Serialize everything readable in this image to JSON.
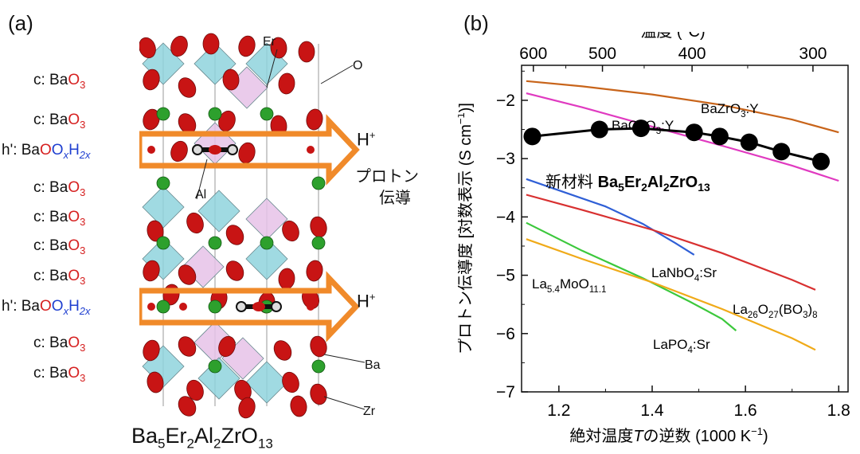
{
  "panel_a": {
    "label": "(a)",
    "layers": [
      {
        "prefix": "c: Ba",
        "o": "O",
        "sub": "3"
      },
      {
        "prefix": "c: Ba",
        "o": "O",
        "sub": "3"
      },
      {
        "prefix": "h': Ba",
        "special": true
      },
      {
        "prefix": "c: Ba",
        "o": "O",
        "sub": "3"
      },
      {
        "prefix": "c: Ba",
        "o": "O",
        "sub": "3"
      },
      {
        "prefix": "c: Ba",
        "o": "O",
        "sub": "3"
      },
      {
        "prefix": "c: Ba",
        "o": "O",
        "sub": "3"
      },
      {
        "prefix": "h': Ba",
        "special": true
      },
      {
        "prefix": "c: Ba",
        "o": "O",
        "sub": "3"
      },
      {
        "prefix": "c: Ba",
        "o": "O",
        "sub": "3"
      }
    ],
    "special_layer": {
      "o1": "O",
      "o2": "O",
      "x": "x",
      "h": "H",
      "h_sub": "2x"
    },
    "atom_labels": {
      "er": "Er",
      "o": "O",
      "al": "Al",
      "ba": "Ba",
      "zr": "Zr"
    },
    "hplus_main": "H",
    "hplus_sup": "+",
    "jp_line1": "プロトン",
    "jp_line2": "伝導",
    "formula": {
      "ba": "Ba",
      "ba_n": "5",
      "er": "Er",
      "er_n": "2",
      "al": "Al",
      "al_n": "2",
      "zr": "ZrO",
      "o_n": "13"
    }
  },
  "colors": {
    "oxygen": "#c81414",
    "barium": "#2da02d",
    "zr_poly": "#8fd3dd",
    "er_poly": "#e6c2e8",
    "arrow": "#f08a2a",
    "arrow_fill": "#ffffff",
    "text_red": "#d62020",
    "text_blue": "#1f3fd0"
  },
  "chart_data": {
    "type": "line",
    "panel_label": "(b)",
    "xlabel_pre": "絶対温度",
    "xlabel_var": "T",
    "xlabel_post": "の逆数 (1000 K",
    "xlabel_sup": "−1",
    "xlabel_end": ")",
    "ylabel_pre": "プロトン伝導度 [対数表示 (S cm",
    "ylabel_sup": "−1",
    "ylabel_end": ")]",
    "top_axis_label": "温度 (°C)",
    "xlim": [
      1.12,
      1.82
    ],
    "ylim": [
      -7,
      -1.4
    ],
    "xticks": [
      1.2,
      1.4,
      1.6,
      1.8
    ],
    "xtick_labels": [
      "1.2",
      "1.4",
      "1.6",
      "1.8"
    ],
    "yticks": [
      -7,
      -6,
      -5,
      -4,
      -3,
      -2
    ],
    "ytick_labels": [
      "−7",
      "−6",
      "−5",
      "−4",
      "−3",
      "−2"
    ],
    "top_ticks_celsius": [
      600,
      500,
      400,
      300
    ],
    "top_tick_labels": [
      "600",
      "500",
      "400",
      "300"
    ],
    "series": [
      {
        "name": "BaZrO3:Y",
        "label_html": [
          "BaZrO",
          "3",
          ":Y"
        ],
        "color": "#c8641a",
        "x": [
          1.13,
          1.25,
          1.4,
          1.55,
          1.7,
          1.8
        ],
        "y": [
          -1.67,
          -1.76,
          -1.9,
          -2.08,
          -2.33,
          -2.55
        ]
      },
      {
        "name": "BaCeO3:Y",
        "label_html": [
          "BaCeO",
          "3",
          ":Y"
        ],
        "color": "#e03ac0",
        "x": [
          1.13,
          1.25,
          1.4,
          1.55,
          1.7,
          1.8
        ],
        "y": [
          -1.88,
          -2.12,
          -2.45,
          -2.78,
          -3.12,
          -3.38
        ]
      },
      {
        "name": "LaNbO4:Sr",
        "label_html": [
          "LaNbO",
          "4",
          ":Sr"
        ],
        "color": "#2f5fd6",
        "x": [
          1.13,
          1.22,
          1.3,
          1.38,
          1.45,
          1.49
        ],
        "y": [
          -3.35,
          -3.6,
          -3.82,
          -4.12,
          -4.45,
          -4.65
        ]
      },
      {
        "name": "La26O27(BO3)8",
        "label_html": [
          "La",
          "26",
          "O",
          "27",
          "(BO",
          "3",
          ")",
          "8"
        ],
        "color": "#d83030",
        "x": [
          1.13,
          1.25,
          1.4,
          1.55,
          1.7,
          1.75
        ],
        "y": [
          -3.62,
          -3.88,
          -4.22,
          -4.62,
          -5.08,
          -5.25
        ]
      },
      {
        "name": "La5.4MoO11.1",
        "label_html": [
          "La",
          "5.4",
          "MoO",
          "11.1"
        ],
        "color": "#3cc83c",
        "x": [
          1.13,
          1.25,
          1.38,
          1.48,
          1.55,
          1.58
        ],
        "y": [
          -4.1,
          -4.58,
          -5.05,
          -5.45,
          -5.75,
          -5.95
        ]
      },
      {
        "name": "LaPO4:Sr",
        "label_html": [
          "LaPO",
          "4",
          ":Sr"
        ],
        "color": "#f0aa18",
        "x": [
          1.13,
          1.25,
          1.4,
          1.55,
          1.7,
          1.75
        ],
        "y": [
          -4.38,
          -4.72,
          -5.12,
          -5.58,
          -6.08,
          -6.28
        ]
      }
    ],
    "new_material": {
      "name": "Ba5Er2Al2ZrO13",
      "label_prefix": "新材料",
      "label_html": [
        "Ba",
        "5",
        "Er",
        "2",
        "Al",
        "2",
        "ZrO",
        "13"
      ],
      "color": "#000000",
      "x": [
        1.143,
        1.287,
        1.376,
        1.49,
        1.545,
        1.608,
        1.677,
        1.762
      ],
      "y": [
        -2.62,
        -2.5,
        -2.48,
        -2.55,
        -2.62,
        -2.72,
        -2.88,
        -3.05
      ]
    }
  }
}
